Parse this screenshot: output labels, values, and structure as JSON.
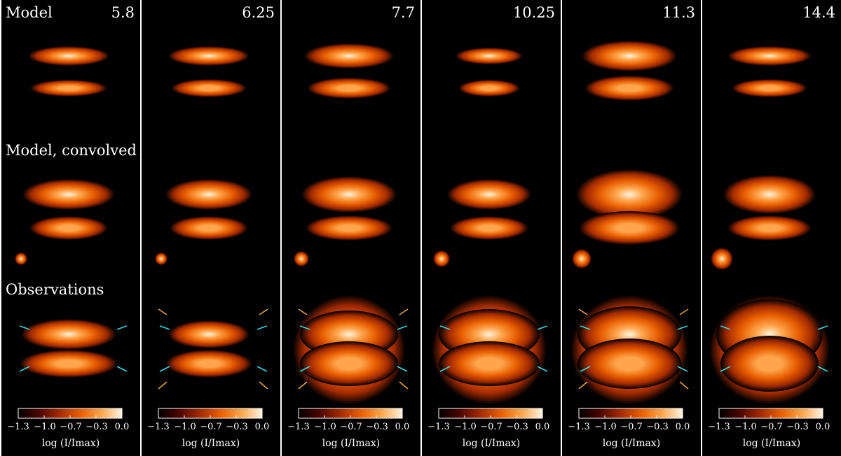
{
  "figure": {
    "row_labels": {
      "model": "Model",
      "convolved": "Model, convolved",
      "observations": "Observations"
    },
    "panels": [
      {
        "wavelength": "5.8",
        "markers": "cyan"
      },
      {
        "wavelength": "6.25",
        "markers": "cyan+orange"
      },
      {
        "wavelength": "7.7",
        "markers": "cyan+orange"
      },
      {
        "wavelength": "10.25",
        "markers": "cyan"
      },
      {
        "wavelength": "11.3",
        "markers": "cyan+orange"
      },
      {
        "wavelength": "14.4",
        "markers": "cyan"
      }
    ],
    "colorbar": {
      "ticks": [
        "−1.3",
        "−1.0",
        "−0.7",
        "−0.3",
        "0.0"
      ],
      "label": "log (I/Imax)",
      "colormap": [
        "#000000",
        "#4a0500",
        "#a32a00",
        "#e85e00",
        "#ffa64d",
        "#fff3e0"
      ]
    },
    "marker_colors": {
      "cyan": "#33d6e8",
      "orange": "#e8a040"
    }
  }
}
